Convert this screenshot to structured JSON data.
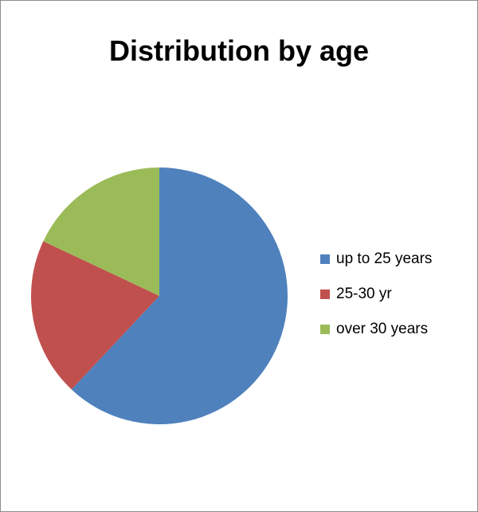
{
  "chart_data": {
    "type": "pie",
    "title": "Distribution by age",
    "categories": [
      "up to 25 years",
      "25-30 yr",
      "over 30 years"
    ],
    "values": [
      62,
      20,
      18
    ],
    "colors": [
      "#4f81bd",
      "#c0504d",
      "#9bbb59"
    ],
    "start": "12 o'clock",
    "direction": "clockwise",
    "legend_position": "right"
  }
}
